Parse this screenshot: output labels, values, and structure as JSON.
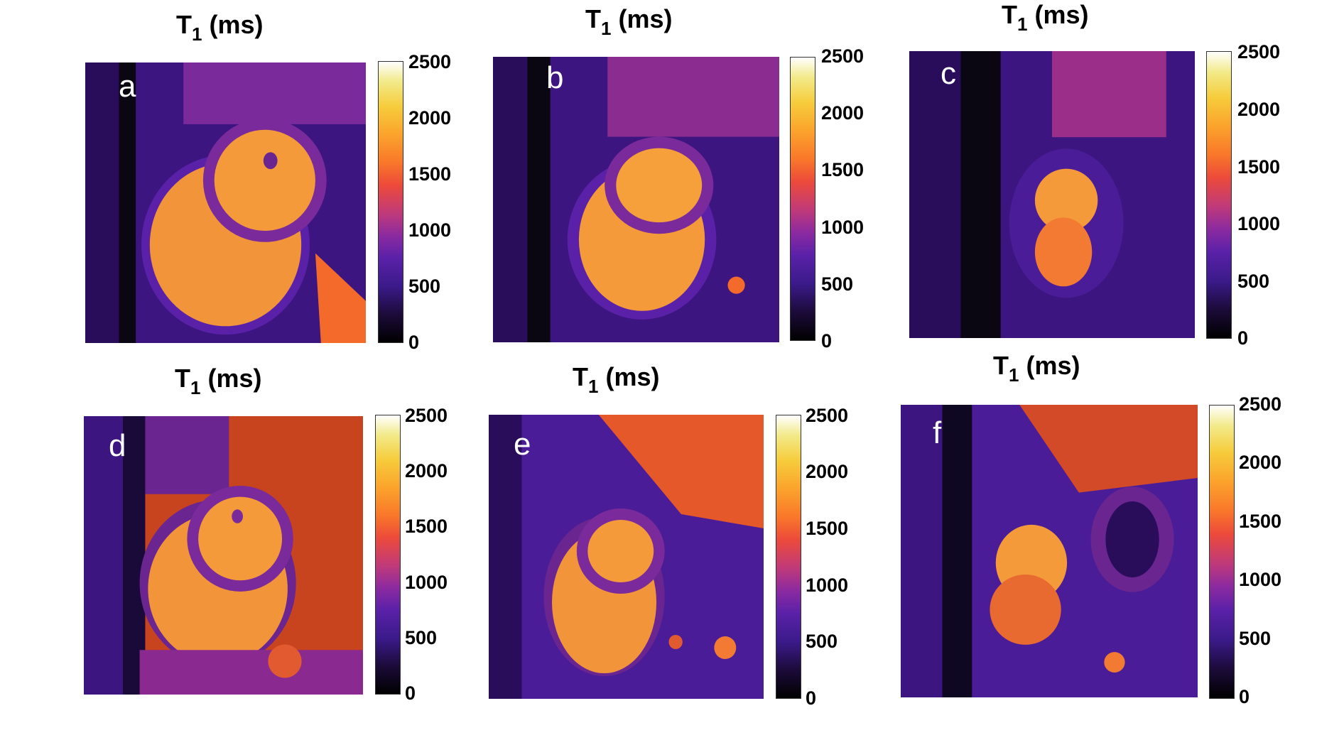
{
  "panels": [
    {
      "id": "a",
      "title_main": "T",
      "title_sub": "1",
      "title_rest": " (ms)",
      "letter": "a"
    },
    {
      "id": "b",
      "title_main": "T",
      "title_sub": "1",
      "title_rest": " (ms)",
      "letter": "b"
    },
    {
      "id": "c",
      "title_main": "T",
      "title_sub": "1",
      "title_rest": " (ms)",
      "letter": "c"
    },
    {
      "id": "d",
      "title_main": "T",
      "title_sub": "1",
      "title_rest": " (ms)",
      "letter": "d"
    },
    {
      "id": "e",
      "title_main": "T",
      "title_sub": "1",
      "title_rest": " (ms)",
      "letter": "e"
    },
    {
      "id": "f",
      "title_main": "T",
      "title_sub": "1",
      "title_rest": " (ms)",
      "letter": "f"
    }
  ],
  "colorbar": {
    "ticks": [
      "2500",
      "2000",
      "1500",
      "1000",
      "500",
      "0"
    ],
    "colors": {
      "low": "#000000",
      "mid_low": "#5a21a8",
      "mid": "#ec4a3a",
      "mid_high": "#fba32c",
      "high": "#ffffff"
    }
  }
}
